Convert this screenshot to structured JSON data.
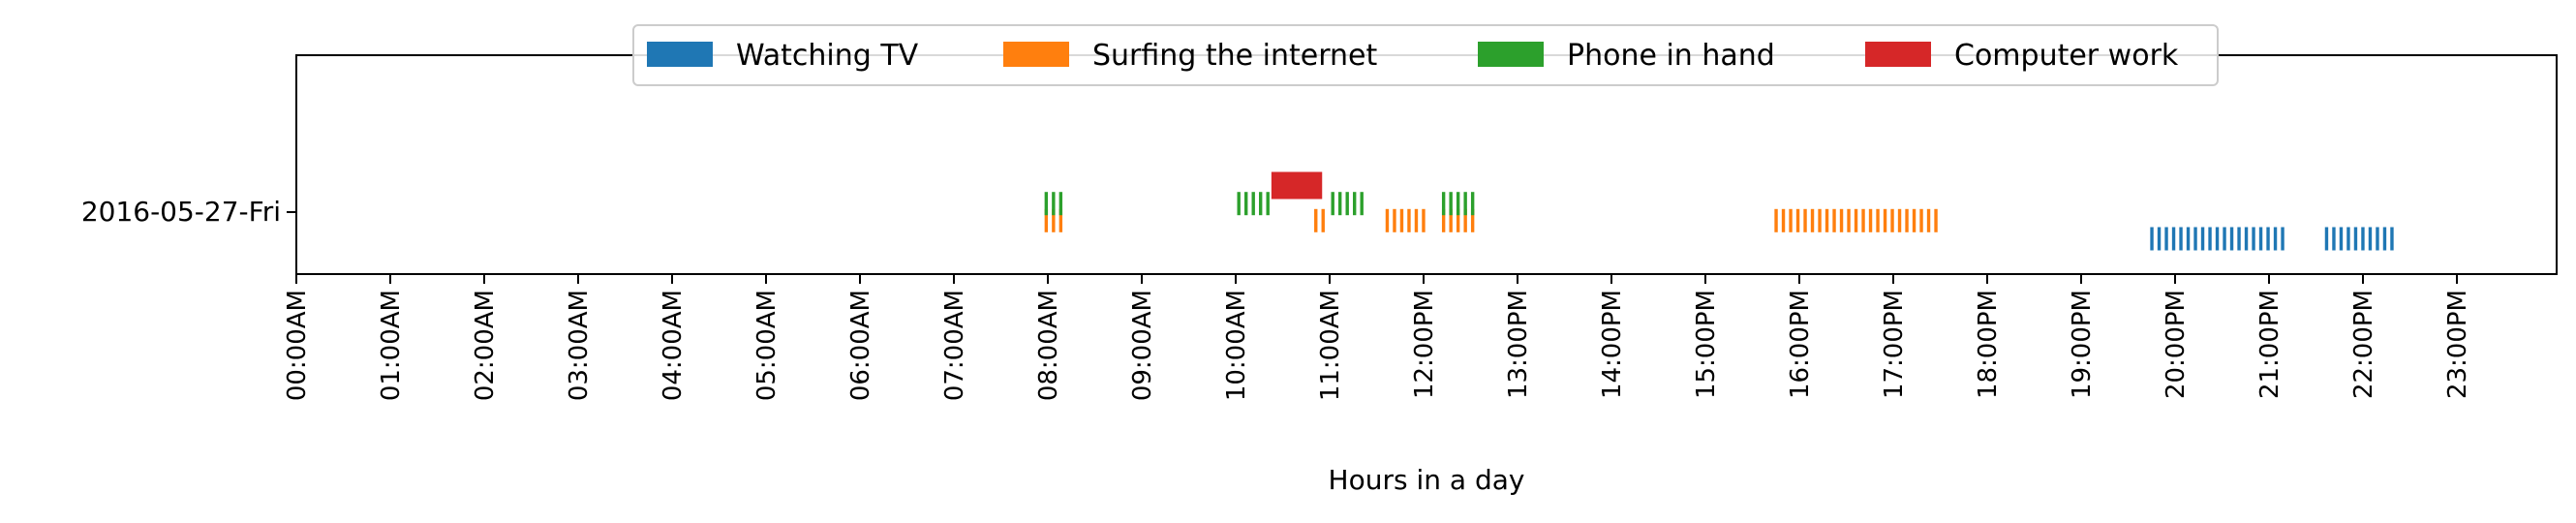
{
  "chart_data": {
    "type": "timeline",
    "xlabel": "Hours in a day",
    "x_range_hours": [
      0,
      24
    ],
    "x_ticks": [
      "00:00AM",
      "01:00AM",
      "02:00AM",
      "03:00AM",
      "04:00AM",
      "05:00AM",
      "06:00AM",
      "07:00AM",
      "08:00AM",
      "09:00AM",
      "10:00AM",
      "11:00AM",
      "12:00PM",
      "13:00PM",
      "14:00PM",
      "15:00PM",
      "16:00PM",
      "17:00PM",
      "18:00PM",
      "19:00PM",
      "20:00PM",
      "21:00PM",
      "22:00PM",
      "23:00PM"
    ],
    "y_categories": [
      "2016-05-27-Fri"
    ],
    "legend_position": "top-center",
    "series": [
      {
        "name": "Watching TV",
        "color": "#1f77b4",
        "style": "hatched",
        "lane_offset": -0.25,
        "intervals": [
          [
            19.72,
            21.18
          ],
          [
            21.58,
            22.38
          ]
        ]
      },
      {
        "name": "Surfing the internet",
        "color": "#ff7f0e",
        "style": "hatched",
        "lane_offset": -0.08,
        "intervals": [
          [
            7.95,
            8.15
          ],
          [
            10.82,
            10.92
          ],
          [
            11.58,
            12.05
          ],
          [
            12.18,
            12.55
          ],
          [
            15.72,
            17.5
          ]
        ]
      },
      {
        "name": "Phone in hand",
        "color": "#2ca02c",
        "style": "hatched",
        "lane_offset": 0.08,
        "intervals": [
          [
            7.95,
            8.15
          ],
          [
            10.0,
            10.38
          ],
          [
            11.0,
            11.4
          ],
          [
            12.18,
            12.55
          ]
        ]
      },
      {
        "name": "Computer work",
        "color": "#d62728",
        "style": "solid",
        "lane_offset": 0.25,
        "intervals": [
          [
            10.38,
            10.92
          ]
        ]
      }
    ]
  }
}
